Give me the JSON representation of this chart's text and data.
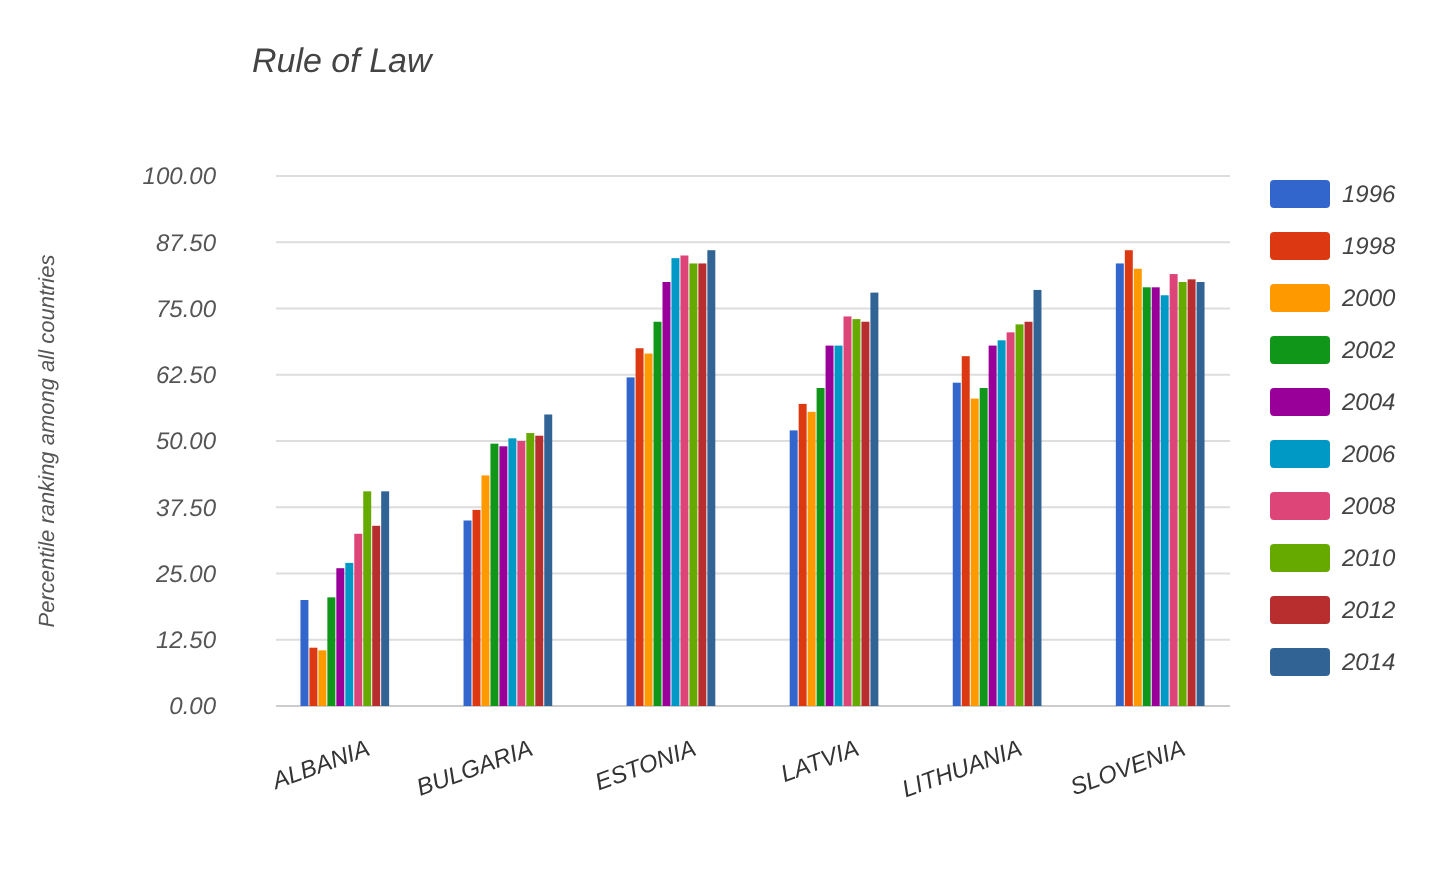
{
  "chart_data": {
    "type": "bar",
    "title": "Rule of Law",
    "ylabel": "Percentile ranking among all countries",
    "categories": [
      "ALBANIA",
      "BULGARIA",
      "ESTONIA",
      "LATVIA",
      "LITHUANIA",
      "SLOVENIA"
    ],
    "ylim": [
      0,
      100
    ],
    "yticks": [
      {
        "value": 0,
        "label": "0.00"
      },
      {
        "value": 12.5,
        "label": "12.50"
      },
      {
        "value": 25,
        "label": "25.00"
      },
      {
        "value": 37.5,
        "label": "37.50"
      },
      {
        "value": 50,
        "label": "50.00"
      },
      {
        "value": 62.5,
        "label": "62.50"
      },
      {
        "value": 75,
        "label": "75.00"
      },
      {
        "value": 87.5,
        "label": "87.50"
      },
      {
        "value": 100,
        "label": "100.00"
      }
    ],
    "grid": "y",
    "legend": "right",
    "series": [
      {
        "name": "1996",
        "color": "#3366cc",
        "values": [
          20,
          35,
          62,
          52,
          61,
          83.5
        ]
      },
      {
        "name": "1998",
        "color": "#dc3912",
        "values": [
          11,
          37,
          67.5,
          57,
          66,
          86
        ]
      },
      {
        "name": "2000",
        "color": "#ff9900",
        "values": [
          10.5,
          43.5,
          66.5,
          55.5,
          58,
          82.5
        ]
      },
      {
        "name": "2002",
        "color": "#109618",
        "values": [
          20.5,
          49.5,
          72.5,
          60,
          60,
          79
        ]
      },
      {
        "name": "2004",
        "color": "#990099",
        "values": [
          26,
          49,
          80,
          68,
          68,
          79
        ]
      },
      {
        "name": "2006",
        "color": "#0099c6",
        "values": [
          27,
          50.5,
          84.5,
          68,
          69,
          77.5
        ]
      },
      {
        "name": "2008",
        "color": "#dd4477",
        "values": [
          32.5,
          50,
          85,
          73.5,
          70.5,
          81.5
        ]
      },
      {
        "name": "2010",
        "color": "#66aa00",
        "values": [
          40.5,
          51.5,
          83.5,
          73,
          72,
          80
        ]
      },
      {
        "name": "2012",
        "color": "#b82e2e",
        "values": [
          34,
          51,
          83.5,
          72.5,
          72.5,
          80.5
        ]
      },
      {
        "name": "2014",
        "color": "#316395",
        "values": [
          40.5,
          55,
          86,
          78,
          78.5,
          80
        ]
      }
    ]
  }
}
